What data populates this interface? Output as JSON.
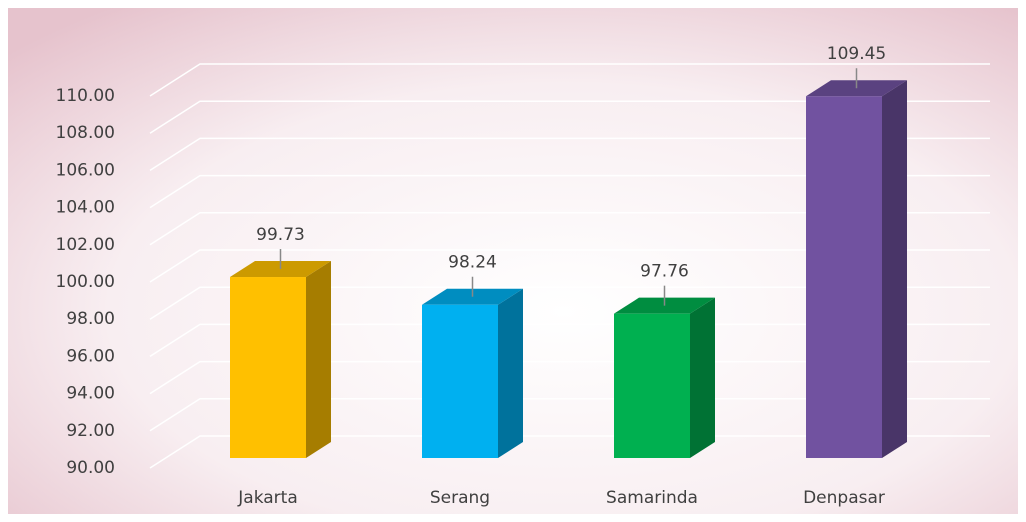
{
  "chart_data": {
    "type": "bar3d",
    "categories": [
      "Jakarta",
      "Serang",
      "Samarinda",
      "Denpasar"
    ],
    "values": [
      99.73,
      98.24,
      97.76,
      109.45
    ],
    "colors": [
      "#ffc000",
      "#00b0f0",
      "#00b050",
      "#7152a0"
    ],
    "ylim": [
      90,
      110
    ],
    "yticks": [
      {
        "value": 90,
        "label": "90.00"
      },
      {
        "value": 92,
        "label": "92.00"
      },
      {
        "value": 94,
        "label": "94.00"
      },
      {
        "value": 96,
        "label": "96.00"
      },
      {
        "value": 98,
        "label": "98.00"
      },
      {
        "value": 100,
        "label": "100.00"
      },
      {
        "value": 102,
        "label": "102.00"
      },
      {
        "value": 104,
        "label": "104.00"
      },
      {
        "value": 106,
        "label": "106.00"
      },
      {
        "value": 108,
        "label": "108.00"
      },
      {
        "value": 110,
        "label": "110.00"
      }
    ],
    "grid": true
  }
}
